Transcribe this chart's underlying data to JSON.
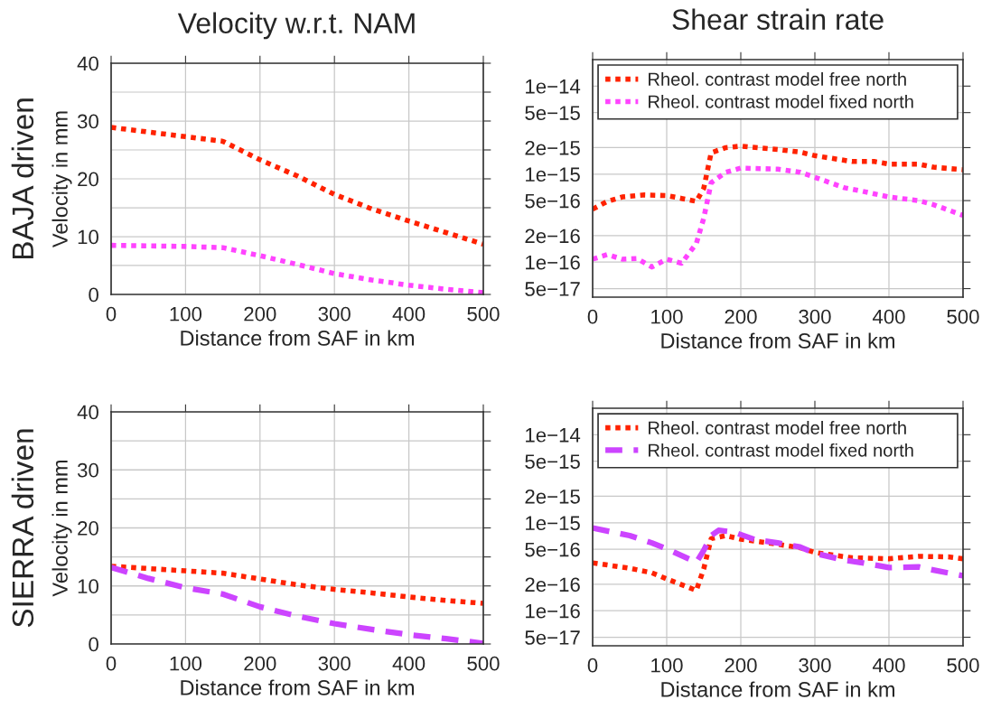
{
  "chart_data": [
    {
      "type": "line",
      "title": "Velocity w.r.t. NAM",
      "annotations": [
        "BAJA driven"
      ],
      "xlabel": "Distance from SAF in km",
      "ylabel": "Velocity in mm",
      "xlim": [
        0,
        500
      ],
      "xticks": [
        0,
        100,
        200,
        300,
        400,
        500
      ],
      "ylim": [
        0,
        40
      ],
      "yticks": [
        0,
        {
          "value": 5,
          "label": null
        },
        10,
        {
          "value": 15,
          "label": null
        },
        20,
        {
          "value": 25,
          "label": null
        },
        30,
        {
          "value": 35,
          "label": null
        },
        40
      ],
      "grid": true,
      "series": [
        {
          "color": "#ff2200",
          "line_style": "dotted",
          "x": [
            0,
            50,
            100,
            150,
            200,
            250,
            300,
            350,
            400,
            450,
            500
          ],
          "values": [
            28.9,
            28.1,
            27.3,
            26.5,
            23.3,
            20.5,
            17.3,
            14.8,
            12.7,
            10.7,
            8.7
          ]
        },
        {
          "color": "#ff44ff",
          "line_style": "dotted",
          "x": [
            0,
            50,
            100,
            150,
            200,
            250,
            300,
            350,
            400,
            450,
            500
          ],
          "values": [
            8.5,
            8.4,
            8.3,
            8.1,
            6.7,
            5.2,
            3.6,
            2.5,
            1.6,
            0.9,
            0.3
          ]
        }
      ]
    },
    {
      "type": "line",
      "title": "Shear strain rate",
      "xlim": [
        0,
        500
      ],
      "xticks": [
        0,
        100,
        200,
        300,
        400,
        500
      ],
      "log": "y",
      "ylim": [
        4e-17,
        2e-14
      ],
      "yticks": [
        {
          "value": 5e-17,
          "label": "5e−17"
        },
        {
          "value": 1e-16,
          "label": "1e−16"
        },
        {
          "value": 2e-16,
          "label": "2e−16"
        },
        {
          "value": 5e-16,
          "label": "5e−16"
        },
        {
          "value": 1e-15,
          "label": "1e−15"
        },
        {
          "value": 2e-15,
          "label": "2e−15"
        },
        {
          "value": 5e-15,
          "label": "5e−15"
        },
        {
          "value": 1e-14,
          "label": "1e−14"
        }
      ],
      "xlabel": "Distance from SAF in km",
      "grid": true,
      "legend": "top",
      "series": [
        {
          "name": "Rheol. contrast model free north",
          "color": "#ff2200",
          "line_style": "dotted",
          "x": [
            0,
            20,
            40,
            70,
            100,
            120,
            140,
            150,
            160,
            180,
            200,
            250,
            280,
            300,
            350,
            380,
            400,
            440,
            460,
            500
          ],
          "values": [
            4e-16,
            4.9e-16,
            5.5e-16,
            5.8e-16,
            5.7e-16,
            5.3e-16,
            4.9e-16,
            6.9e-16,
            1.75e-15,
            2e-15,
            2.08e-15,
            1.9e-15,
            1.78e-15,
            1.62e-15,
            1.39e-15,
            1.39e-15,
            1.3e-15,
            1.3e-15,
            1.2e-15,
            1.12e-15
          ]
        },
        {
          "name": "Rheol. contrast model fixed north",
          "color": "#ff44ff",
          "line_style": "dotted",
          "x": [
            0,
            20,
            40,
            60,
            80,
            100,
            120,
            140,
            150,
            160,
            180,
            200,
            250,
            280,
            300,
            340,
            360,
            400,
            440,
            460,
            500
          ],
          "values": [
            1.08e-16,
            1.22e-16,
            1.08e-16,
            1.1e-16,
            8.8e-17,
            1.08e-16,
            9.7e-17,
            1.63e-16,
            3.16e-16,
            8e-16,
            1.05e-15,
            1.17e-15,
            1.14e-15,
            1.05e-15,
            9.2e-16,
            7e-16,
            6.5e-16,
            5.5e-16,
            5e-16,
            4.5e-16,
            3.4e-16
          ]
        }
      ]
    },
    {
      "type": "line",
      "annotations": [
        "SIERRA driven"
      ],
      "xlabel": "Distance from SAF in km",
      "ylabel": "Velocity in mm",
      "xlim": [
        0,
        500
      ],
      "xticks": [
        0,
        100,
        200,
        300,
        400,
        500
      ],
      "ylim": [
        0,
        40
      ],
      "yticks": [
        0,
        {
          "value": 5,
          "label": null
        },
        10,
        {
          "value": 15,
          "label": null
        },
        20,
        {
          "value": 25,
          "label": null
        },
        30,
        {
          "value": 35,
          "label": null
        },
        40
      ],
      "grid": true,
      "series": [
        {
          "color": "#ff2200",
          "line_style": "dotted",
          "x": [
            0,
            50,
            100,
            150,
            200,
            250,
            300,
            350,
            400,
            450,
            500
          ],
          "values": [
            13.4,
            13.0,
            12.6,
            12.2,
            11.2,
            10.2,
            9.4,
            8.8,
            8.1,
            7.5,
            7.0
          ]
        },
        {
          "color": "#cc44ff",
          "line_style": "dashed",
          "x": [
            0,
            50,
            100,
            150,
            200,
            250,
            300,
            350,
            400,
            450,
            500
          ],
          "values": [
            13.2,
            11.3,
            9.7,
            8.6,
            6.4,
            4.8,
            3.5,
            2.5,
            1.6,
            0.9,
            0.1
          ]
        }
      ]
    },
    {
      "type": "line",
      "xlim": [
        0,
        500
      ],
      "xticks": [
        0,
        100,
        200,
        300,
        400,
        500
      ],
      "log": "y",
      "ylim": [
        4e-17,
        2e-14
      ],
      "yticks": [
        {
          "value": 5e-17,
          "label": "5e−17"
        },
        {
          "value": 1e-16,
          "label": "1e−16"
        },
        {
          "value": 2e-16,
          "label": "2e−16"
        },
        {
          "value": 5e-16,
          "label": "5e−16"
        },
        {
          "value": 1e-15,
          "label": "1e−15"
        },
        {
          "value": 2e-15,
          "label": "2e−15"
        },
        {
          "value": 5e-15,
          "label": "5e−15"
        },
        {
          "value": 1e-14,
          "label": "1e−14"
        }
      ],
      "xlabel": "Distance from SAF in km",
      "grid": true,
      "legend": "top",
      "series": [
        {
          "name": "Rheol. contrast model free north",
          "color": "#ff2200",
          "line_style": "dotted",
          "x": [
            0,
            50,
            80,
            100,
            120,
            140,
            150,
            160,
            180,
            200,
            250,
            280,
            300,
            350,
            400,
            440,
            480,
            500
          ],
          "values": [
            3.5e-16,
            3.04e-16,
            2.7e-16,
            2.3e-16,
            1.98e-16,
            1.7e-16,
            3e-16,
            6.6e-16,
            7.15e-16,
            6.5e-16,
            5.7e-16,
            5.2e-16,
            4.6e-16,
            4e-16,
            3.9e-16,
            4.15e-16,
            4.1e-16,
            3.9e-16
          ]
        },
        {
          "name": "Rheol. contrast model fixed north",
          "color": "#cc44ff",
          "line_style": "dashed",
          "x": [
            0,
            50,
            80,
            100,
            140,
            150,
            160,
            170,
            190,
            220,
            250,
            280,
            300,
            340,
            360,
            400,
            440,
            460,
            500
          ],
          "values": [
            8.7e-16,
            7.15e-16,
            5.9e-16,
            5.04e-16,
            3.55e-16,
            4.85e-16,
            7.15e-16,
            8.2e-16,
            7.85e-16,
            6.4e-16,
            5.9e-16,
            5.3e-16,
            4.5e-16,
            3.75e-16,
            3.55e-16,
            3.1e-16,
            3.15e-16,
            2.9e-16,
            2.5e-16
          ]
        }
      ]
    }
  ]
}
